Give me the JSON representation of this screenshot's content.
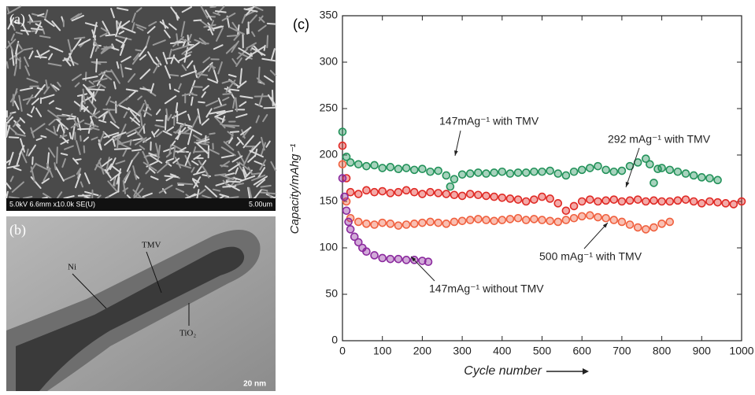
{
  "panel_a": {
    "label": "(a)",
    "info": "5.0kV 6.6mm x10.0k SE(U)",
    "scale": "5.00um"
  },
  "panel_b": {
    "label": "(b)",
    "labels": [
      "Ni",
      "TMV",
      "TiO₂"
    ],
    "scale": "20 nm"
  },
  "chart_data": {
    "type": "scatter",
    "panel_label": "(c)",
    "x_label": "Cycle number",
    "y_label": "Capacity/mAhg⁻¹",
    "xlim": [
      0,
      1000
    ],
    "xticks": [
      0,
      100,
      200,
      300,
      400,
      500,
      600,
      700,
      800,
      900,
      1000
    ],
    "ylim": [
      0,
      350
    ],
    "yticks": [
      0,
      50,
      100,
      150,
      200,
      250,
      300,
      350
    ],
    "series": [
      {
        "name": "147mAg⁻¹ with TMV",
        "color": "#23925a",
        "x": [
          0,
          10,
          20,
          40,
          60,
          80,
          100,
          120,
          140,
          160,
          180,
          200,
          220,
          240,
          260,
          270,
          280,
          300,
          320,
          340,
          360,
          380,
          400,
          420,
          440,
          460,
          480,
          500,
          520,
          540,
          560,
          580,
          600,
          620,
          640,
          660,
          680,
          700,
          720,
          740,
          760,
          770,
          780,
          790,
          800,
          820,
          840,
          860,
          880,
          900,
          920,
          940
        ],
        "values": [
          225,
          198,
          192,
          190,
          188,
          189,
          186,
          187,
          185,
          186,
          184,
          185,
          182,
          183,
          178,
          166,
          174,
          179,
          180,
          181,
          180,
          181,
          182,
          180,
          181,
          181,
          182,
          182,
          183,
          180,
          178,
          182,
          184,
          186,
          188,
          184,
          182,
          183,
          188,
          192,
          196,
          190,
          170,
          185,
          186,
          184,
          182,
          180,
          178,
          176,
          175,
          173
        ]
      },
      {
        "name": "292 mAg⁻¹ with TMV",
        "color": "#e02a25",
        "x": [
          0,
          10,
          20,
          40,
          60,
          80,
          100,
          120,
          140,
          160,
          180,
          200,
          220,
          240,
          260,
          280,
          300,
          320,
          340,
          360,
          380,
          400,
          420,
          440,
          460,
          480,
          500,
          520,
          540,
          560,
          580,
          600,
          620,
          640,
          660,
          680,
          700,
          720,
          740,
          760,
          780,
          800,
          820,
          840,
          860,
          880,
          900,
          920,
          940,
          960,
          980,
          1000
        ],
        "values": [
          210,
          175,
          160,
          158,
          162,
          160,
          161,
          159,
          160,
          162,
          160,
          158,
          160,
          159,
          158,
          157,
          156,
          158,
          157,
          156,
          155,
          154,
          153,
          152,
          150,
          152,
          155,
          153,
          148,
          140,
          145,
          150,
          152,
          150,
          151,
          152,
          150,
          151,
          152,
          150,
          151,
          150,
          150,
          151,
          152,
          150,
          148,
          150,
          149,
          148,
          147,
          150
        ]
      },
      {
        "name": "500 mAg⁻¹ with TMV",
        "color": "#f0603e",
        "x": [
          0,
          10,
          20,
          40,
          60,
          80,
          100,
          120,
          140,
          160,
          180,
          200,
          220,
          240,
          260,
          280,
          300,
          320,
          340,
          360,
          380,
          400,
          420,
          440,
          460,
          480,
          500,
          520,
          540,
          560,
          580,
          600,
          620,
          640,
          660,
          680,
          700,
          720,
          740,
          760,
          780,
          800,
          820
        ],
        "values": [
          190,
          150,
          132,
          128,
          126,
          125,
          127,
          126,
          124,
          125,
          126,
          127,
          128,
          127,
          126,
          128,
          129,
          130,
          131,
          130,
          129,
          130,
          131,
          132,
          130,
          131,
          130,
          129,
          128,
          130,
          132,
          134,
          135,
          133,
          132,
          130,
          128,
          125,
          122,
          120,
          122,
          126,
          128
        ]
      },
      {
        "name": "147mAg⁻¹ without TMV",
        "color": "#8b2a9e",
        "x": [
          0,
          5,
          10,
          15,
          20,
          30,
          40,
          50,
          60,
          80,
          100,
          120,
          140,
          160,
          180,
          200,
          215
        ],
        "values": [
          175,
          155,
          140,
          128,
          120,
          112,
          106,
          100,
          96,
          92,
          89,
          88,
          88,
          87,
          87,
          86,
          85
        ]
      }
    ]
  }
}
